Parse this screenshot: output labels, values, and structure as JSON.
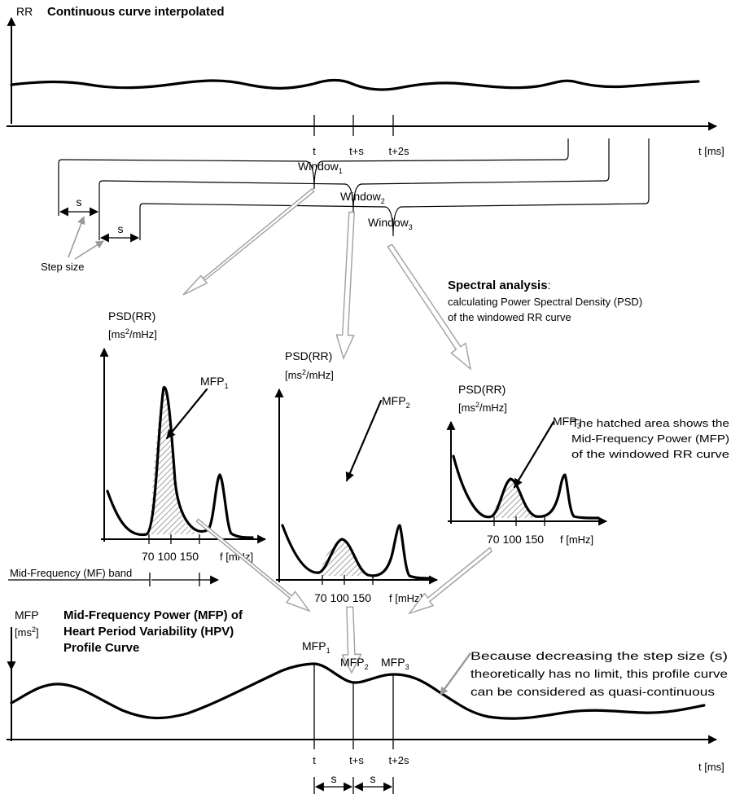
{
  "top_panel": {
    "y_axis_label": "RR",
    "title": "Continuous curve interpolated",
    "x_axis_label": "t [ms]",
    "tick_t": "t",
    "tick_ts": "t+s",
    "tick_t2s": "t+2s"
  },
  "windows": {
    "w1": "Window",
    "w1_sub": "1",
    "w2": "Window",
    "w2_sub": "2",
    "w3": "Window",
    "w3_sub": "3",
    "step_s1": "s",
    "step_s2": "s",
    "step_size_label": "Step size"
  },
  "spectral": {
    "title": "Spectral analysis",
    "colon": ":",
    "line1": "calculating Power Spectral Density (PSD)",
    "line2": "of the windowed RR curve"
  },
  "psd_panels": [
    {
      "title": "PSD(RR)",
      "unit_a": "[ms",
      "unit_sup": "2",
      "unit_b": "/mHz]",
      "mfp": "MFP",
      "mfp_sub": "1",
      "ticks": "70  100  150",
      "x_unit": "f [mHz]"
    },
    {
      "title": "PSD(RR)",
      "unit_a": "[ms",
      "unit_sup": "2",
      "unit_b": "/mHz]",
      "mfp": "MFP",
      "mfp_sub": "2",
      "ticks": "70  100  150",
      "x_unit": "f [mHz]"
    },
    {
      "title": "PSD(RR)",
      "unit_a": "[ms",
      "unit_sup": "2",
      "unit_b": "/mHz]",
      "mfp": "MFP",
      "mfp_sub": "3",
      "ticks": "70  100  150",
      "x_unit": "f [mHz]"
    }
  ],
  "mf_band_label": "Mid-Frequency (MF) band",
  "hatched_note": {
    "line1": "The hatched area shows the",
    "line2": "Mid-Frequency Power (MFP)",
    "line3": "of the windowed RR curve"
  },
  "bottom_panel": {
    "y_axis_label": "MFP",
    "unit_a": "[ms",
    "unit_sup": "2",
    "unit_b": "]",
    "title_line1": "Mid-Frequency Power (MFP) of",
    "title_line2": "Heart Period Variability (HPV)",
    "title_line3": "Profile Curve",
    "mfp1": "MFP",
    "mfp1_sub": "1",
    "mfp2": "MFP",
    "mfp2_sub": "2",
    "mfp3": "MFP",
    "mfp3_sub": "3",
    "note_line1": "Because decreasing the step size (s)",
    "note_line2": "theoretically has no limit, this profile curve",
    "note_line3": "can be considered as quasi-continuous",
    "x_axis_label": "t [ms]",
    "tick_t": "t",
    "tick_ts": "t+s",
    "tick_t2s": "t+2s",
    "step_s1": "s",
    "step_s2": "s"
  }
}
